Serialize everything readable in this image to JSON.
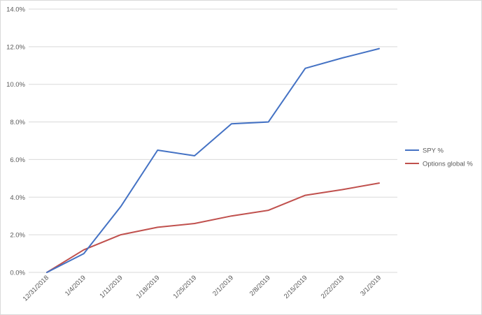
{
  "chart_data": {
    "type": "line",
    "title": "",
    "xlabel": "",
    "ylabel": "",
    "categories": [
      "12/31/2018",
      "1/4/2019",
      "1/11/2019",
      "1/18/2019",
      "1/25/2019",
      "2/1/2019",
      "2/8/2019",
      "2/15/2019",
      "2/22/2019",
      "3/1/2019"
    ],
    "ylim": [
      0,
      14
    ],
    "yticks": [
      0,
      2,
      4,
      6,
      8,
      10,
      12,
      14
    ],
    "ytick_labels": [
      "0.0%",
      "2.0%",
      "4.0%",
      "6.0%",
      "8.0%",
      "10.0%",
      "12.0%",
      "14.0%"
    ],
    "grid": "horizontal",
    "legend_position": "right",
    "series": [
      {
        "name": "SPY %",
        "color": "#4472c4",
        "values": [
          0.0,
          1.0,
          3.5,
          6.5,
          6.2,
          7.9,
          8.0,
          10.85,
          11.4,
          11.9
        ]
      },
      {
        "name": "Options global %",
        "color": "#c0504d",
        "values": [
          0.0,
          1.2,
          2.0,
          2.4,
          2.6,
          3.0,
          3.3,
          4.1,
          4.4,
          4.75
        ]
      }
    ]
  }
}
